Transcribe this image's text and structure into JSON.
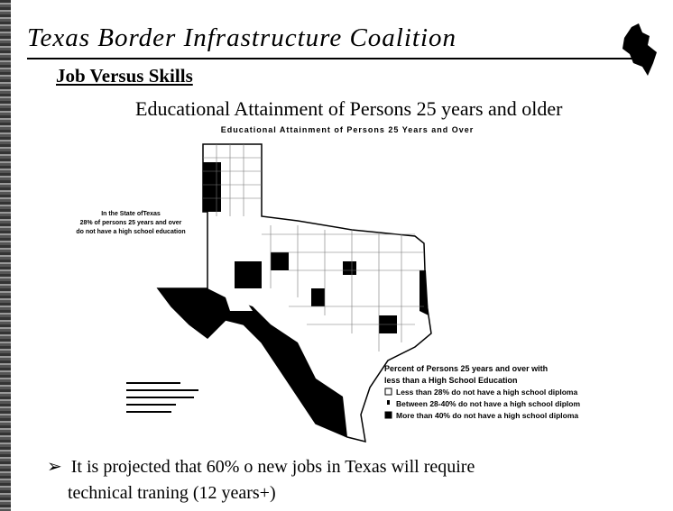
{
  "header": {
    "title": "Texas Border Infrastructure Coalition"
  },
  "section": {
    "title": "Job Versus Skills"
  },
  "subtitle": "Educational Attainment of Persons 25 years and older",
  "map": {
    "title": "Educational Attainment of Persons 25 Years and Over",
    "callout": [
      "In the State ofTexas",
      "28% of persons 25 years and over",
      "do not have a high school education"
    ],
    "legend": {
      "title": [
        "Percent of Persons 25 years and over with",
        "less than a High School Education"
      ],
      "items": [
        "Less than 28% do not have a high school diploma",
        "Between 28-40% do not have a high school diplom",
        "More than 40% do not have a high school diploma"
      ]
    }
  },
  "bullets": [
    "It is projected that 60% o new jobs in Texas will require",
    "technical traning (12 years+)"
  ]
}
